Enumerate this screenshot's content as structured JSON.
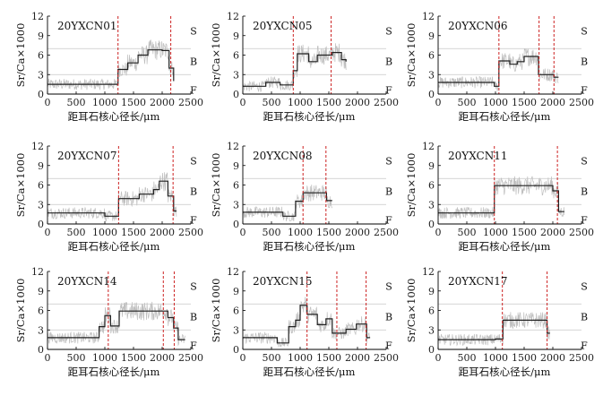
{
  "chart_data": {
    "type": "line",
    "x_label": "距耳石核心径长/μm",
    "y_label": "Sr/Ca×1000",
    "x_range": [
      0,
      2500
    ],
    "y_range": [
      0,
      12
    ],
    "x_ticks": [
      0,
      500,
      1000,
      1500,
      2000,
      2500
    ],
    "y_ticks": [
      0,
      3,
      6,
      9,
      12
    ],
    "zone_labels": [
      "S",
      "B",
      "F"
    ],
    "zone_thresholds": [
      3,
      7
    ],
    "colors": {
      "fitted": "#222222",
      "raw": "#bfbfbf",
      "boundary": "#cc2222",
      "threshold": "#c8c8c8"
    },
    "panels": [
      {
        "name": "20YXCN01",
        "x_max": 2200,
        "boundaries": [
          1230,
          2150
        ],
        "steps": [
          [
            0,
            1.5
          ],
          [
            1230,
            3.8
          ],
          [
            1400,
            4.8
          ],
          [
            1580,
            6.0
          ],
          [
            1750,
            6.8
          ],
          [
            2000,
            6.7
          ],
          [
            2120,
            4.0
          ],
          [
            2200,
            2.0
          ]
        ]
      },
      {
        "name": "20YXCN05",
        "x_max": 1800,
        "boundaries": [
          880,
          1540
        ],
        "steps": [
          [
            0,
            1.2
          ],
          [
            400,
            1.8
          ],
          [
            650,
            1.4
          ],
          [
            880,
            3.6
          ],
          [
            950,
            6.2
          ],
          [
            1150,
            5.0
          ],
          [
            1300,
            6.0
          ],
          [
            1560,
            6.4
          ],
          [
            1720,
            5.3
          ],
          [
            1800,
            5.0
          ]
        ]
      },
      {
        "name": "20YXCN06",
        "x_max": 2100,
        "boundaries": [
          1060,
          1760,
          2020
        ],
        "steps": [
          [
            0,
            1.8
          ],
          [
            980,
            1.2
          ],
          [
            1060,
            5.1
          ],
          [
            1250,
            4.6
          ],
          [
            1380,
            5.0
          ],
          [
            1500,
            5.8
          ],
          [
            1750,
            3.0
          ],
          [
            2020,
            2.6
          ],
          [
            2100,
            2.6
          ]
        ]
      },
      {
        "name": "20YXCN07",
        "x_max": 2250,
        "boundaries": [
          1240,
          2190
        ],
        "steps": [
          [
            0,
            1.7
          ],
          [
            1000,
            1.2
          ],
          [
            1240,
            3.9
          ],
          [
            1600,
            4.6
          ],
          [
            1850,
            5.3
          ],
          [
            1950,
            6.6
          ],
          [
            2100,
            4.3
          ],
          [
            2200,
            2.0
          ],
          [
            2250,
            2.0
          ]
        ]
      },
      {
        "name": "20YXCN08",
        "x_max": 1560,
        "boundaries": [
          1050,
          1450
        ],
        "steps": [
          [
            0,
            1.8
          ],
          [
            700,
            1.2
          ],
          [
            920,
            3.5
          ],
          [
            1050,
            4.8
          ],
          [
            1460,
            3.6
          ],
          [
            1560,
            3.6
          ]
        ]
      },
      {
        "name": "20YXCN11",
        "x_max": 2200,
        "boundaries": [
          980,
          2080
        ],
        "steps": [
          [
            0,
            1.7
          ],
          [
            980,
            5.9
          ],
          [
            2000,
            5.1
          ],
          [
            2100,
            1.9
          ],
          [
            2200,
            1.9
          ]
        ]
      },
      {
        "name": "20YXCN14",
        "x_max": 2400,
        "boundaries": [
          1060,
          2020,
          2210
        ],
        "steps": [
          [
            0,
            1.8
          ],
          [
            900,
            3.5
          ],
          [
            1000,
            5.2
          ],
          [
            1100,
            3.6
          ],
          [
            1250,
            5.9
          ],
          [
            2000,
            5.9
          ],
          [
            2100,
            4.9
          ],
          [
            2200,
            3.3
          ],
          [
            2280,
            1.5
          ],
          [
            2400,
            1.5
          ]
        ]
      },
      {
        "name": "20YXCN15",
        "x_max": 2220,
        "boundaries": [
          1120,
          1640,
          2150
        ],
        "steps": [
          [
            0,
            1.8
          ],
          [
            600,
            1.0
          ],
          [
            800,
            3.5
          ],
          [
            920,
            4.5
          ],
          [
            1000,
            6.8
          ],
          [
            1120,
            5.4
          ],
          [
            1300,
            3.8
          ],
          [
            1450,
            4.7
          ],
          [
            1560,
            2.5
          ],
          [
            1800,
            3.1
          ],
          [
            1980,
            3.9
          ],
          [
            2160,
            1.8
          ],
          [
            2220,
            1.8
          ]
        ]
      },
      {
        "name": "20YXCN17",
        "x_max": 1950,
        "boundaries": [
          1120,
          1900
        ],
        "steps": [
          [
            0,
            1.5
          ],
          [
            1000,
            1.6
          ],
          [
            1130,
            4.5
          ],
          [
            1900,
            2.5
          ],
          [
            1950,
            2.5
          ]
        ]
      }
    ]
  }
}
